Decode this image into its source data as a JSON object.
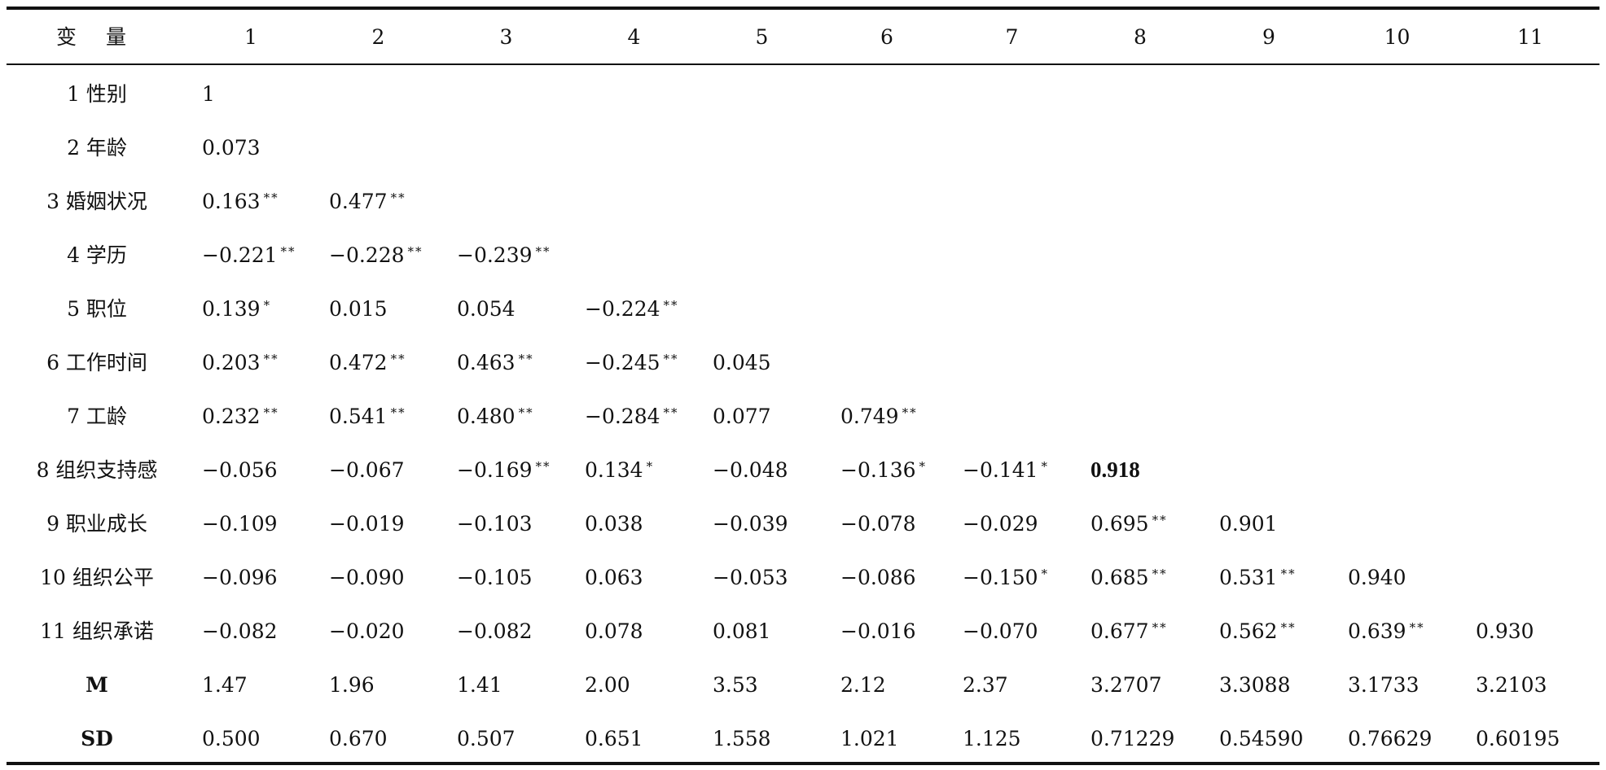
{
  "header": [
    "变 量",
    "1",
    "2",
    "3",
    "4",
    "5",
    "6",
    "7",
    "8",
    "9",
    "10",
    "11"
  ],
  "rows": [
    {
      "label": "1 性别",
      "cells": [
        {
          "v": "1",
          "s": ""
        }
      ]
    },
    {
      "label": "2 年龄",
      "cells": [
        {
          "v": "0.073",
          "s": ""
        }
      ]
    },
    {
      "label": "3 婚姻状况",
      "cells": [
        {
          "v": "0.163",
          "s": "**"
        },
        {
          "v": "0.477",
          "s": "**"
        }
      ]
    },
    {
      "label": "4 学历",
      "cells": [
        {
          "v": "−0.221",
          "s": "**"
        },
        {
          "v": "−0.228",
          "s": "**"
        },
        {
          "v": "−0.239",
          "s": "**"
        }
      ]
    },
    {
      "label": "5 职位",
      "cells": [
        {
          "v": "0.139",
          "s": "*"
        },
        {
          "v": "0.015",
          "s": ""
        },
        {
          "v": "0.054",
          "s": ""
        },
        {
          "v": "−0.224",
          "s": "**"
        }
      ]
    },
    {
      "label": "6 工作时间",
      "cells": [
        {
          "v": "0.203",
          "s": "**"
        },
        {
          "v": "0.472",
          "s": "**"
        },
        {
          "v": "0.463",
          "s": "**"
        },
        {
          "v": "−0.245",
          "s": "**"
        },
        {
          "v": "0.045",
          "s": ""
        }
      ]
    },
    {
      "label": "7 工龄",
      "cells": [
        {
          "v": "0.232",
          "s": "**"
        },
        {
          "v": "0.541",
          "s": "**"
        },
        {
          "v": "0.480",
          "s": "**"
        },
        {
          "v": "−0.284",
          "s": "**"
        },
        {
          "v": "0.077",
          "s": ""
        },
        {
          "v": "0.749",
          "s": "**"
        }
      ]
    },
    {
      "label": "8 组织支持感",
      "cells": [
        {
          "v": "−0.056",
          "s": ""
        },
        {
          "v": "−0.067",
          "s": ""
        },
        {
          "v": "−0.169",
          "s": "**"
        },
        {
          "v": "0.134",
          "s": "*"
        },
        {
          "v": "−0.048",
          "s": ""
        },
        {
          "v": "−0.136",
          "s": "*"
        },
        {
          "v": "−0.141",
          "s": "*"
        },
        {
          "v": "0.918",
          "s": "",
          "bold": true
        }
      ]
    },
    {
      "label": "9 职业成长",
      "cells": [
        {
          "v": "−0.109",
          "s": ""
        },
        {
          "v": "−0.019",
          "s": ""
        },
        {
          "v": "−0.103",
          "s": ""
        },
        {
          "v": "0.038",
          "s": ""
        },
        {
          "v": "−0.039",
          "s": ""
        },
        {
          "v": "−0.078",
          "s": ""
        },
        {
          "v": "−0.029",
          "s": ""
        },
        {
          "v": "0.695",
          "s": "**"
        },
        {
          "v": "0.901",
          "s": ""
        }
      ]
    },
    {
      "label": "10 组织公平",
      "cells": [
        {
          "v": "−0.096",
          "s": ""
        },
        {
          "v": "−0.090",
          "s": ""
        },
        {
          "v": "−0.105",
          "s": ""
        },
        {
          "v": "0.063",
          "s": ""
        },
        {
          "v": "−0.053",
          "s": ""
        },
        {
          "v": "−0.086",
          "s": ""
        },
        {
          "v": "−0.150",
          "s": "*"
        },
        {
          "v": "0.685",
          "s": "**"
        },
        {
          "v": "0.531",
          "s": "**"
        },
        {
          "v": "0.940",
          "s": ""
        }
      ]
    },
    {
      "label": "11 组织承诺",
      "cells": [
        {
          "v": "−0.082",
          "s": ""
        },
        {
          "v": "−0.020",
          "s": ""
        },
        {
          "v": "−0.082",
          "s": ""
        },
        {
          "v": "0.078",
          "s": ""
        },
        {
          "v": "0.081",
          "s": ""
        },
        {
          "v": "−0.016",
          "s": ""
        },
        {
          "v": "−0.070",
          "s": ""
        },
        {
          "v": "0.677",
          "s": "**"
        },
        {
          "v": "0.562",
          "s": "**"
        },
        {
          "v": "0.639",
          "s": "**"
        },
        {
          "v": "0.930",
          "s": ""
        }
      ]
    },
    {
      "label": "M",
      "stat": true,
      "cells": [
        {
          "v": "1.47",
          "s": ""
        },
        {
          "v": "1.96",
          "s": ""
        },
        {
          "v": "1.41",
          "s": ""
        },
        {
          "v": "2.00",
          "s": ""
        },
        {
          "v": "3.53",
          "s": ""
        },
        {
          "v": "2.12",
          "s": ""
        },
        {
          "v": "2.37",
          "s": ""
        },
        {
          "v": "3.2707",
          "s": ""
        },
        {
          "v": "3.3088",
          "s": ""
        },
        {
          "v": "3.1733",
          "s": ""
        },
        {
          "v": "3.2103",
          "s": ""
        }
      ]
    },
    {
      "label": "SD",
      "stat": true,
      "cells": [
        {
          "v": "0.500",
          "s": ""
        },
        {
          "v": "0.670",
          "s": ""
        },
        {
          "v": "0.507",
          "s": ""
        },
        {
          "v": "0.651",
          "s": ""
        },
        {
          "v": "1.558",
          "s": ""
        },
        {
          "v": "1.021",
          "s": ""
        },
        {
          "v": "1.125",
          "s": ""
        },
        {
          "v": "0.71229",
          "s": ""
        },
        {
          "v": "0.54590",
          "s": ""
        },
        {
          "v": "0.76629",
          "s": ""
        },
        {
          "v": "0.60195",
          "s": ""
        }
      ]
    }
  ]
}
